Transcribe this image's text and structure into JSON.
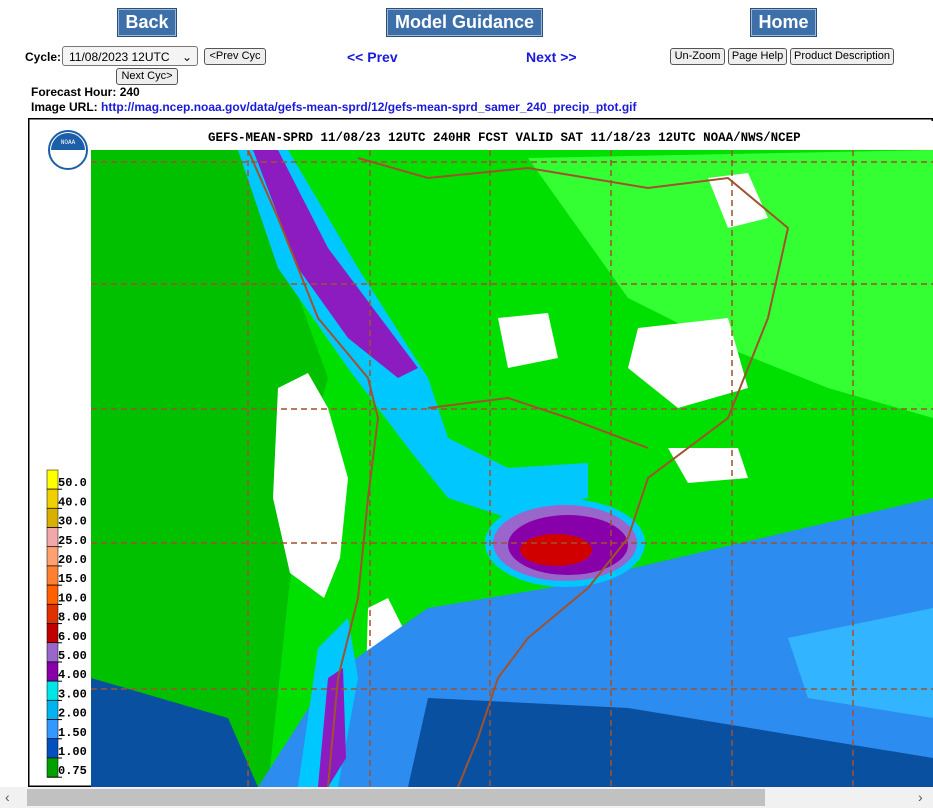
{
  "nav": {
    "back": "Back",
    "model_guidance": "Model Guidance",
    "home": "Home"
  },
  "controls": {
    "cycle_label": "Cycle:",
    "cycle_value": "11/08/2023 12UTC",
    "prev_cyc": "<Prev Cyc",
    "next_cyc": "Next Cyc>",
    "prev": "<< Prev",
    "next": "Next >>",
    "unzoom": "Un-Zoom",
    "page_help": "Page Help",
    "product_description": "Product Description"
  },
  "info": {
    "forecast_hour_label": "Forecast Hour:",
    "forecast_hour": "240",
    "image_url_label": "Image URL:",
    "image_url": "http://mag.ncep.noaa.gov/data/gefs-mean-sprd/12/gefs-mean-sprd_samer_240_precip_ptot.gif"
  },
  "map": {
    "title": "GEFS-MEAN-SPRD 11/08/23 12UTC 240HR FCST VALID SAT 11/18/23 12UTC NOAA/NWS/NCEP",
    "logo": "NOAA",
    "legend": [
      "50.0",
      "40.0",
      "30.0",
      "25.0",
      "20.0",
      "15.0",
      "10.0",
      "8.00",
      "6.00",
      "5.00",
      "4.00",
      "3.00",
      "2.00",
      "1.50",
      "1.00",
      "0.75"
    ]
  }
}
